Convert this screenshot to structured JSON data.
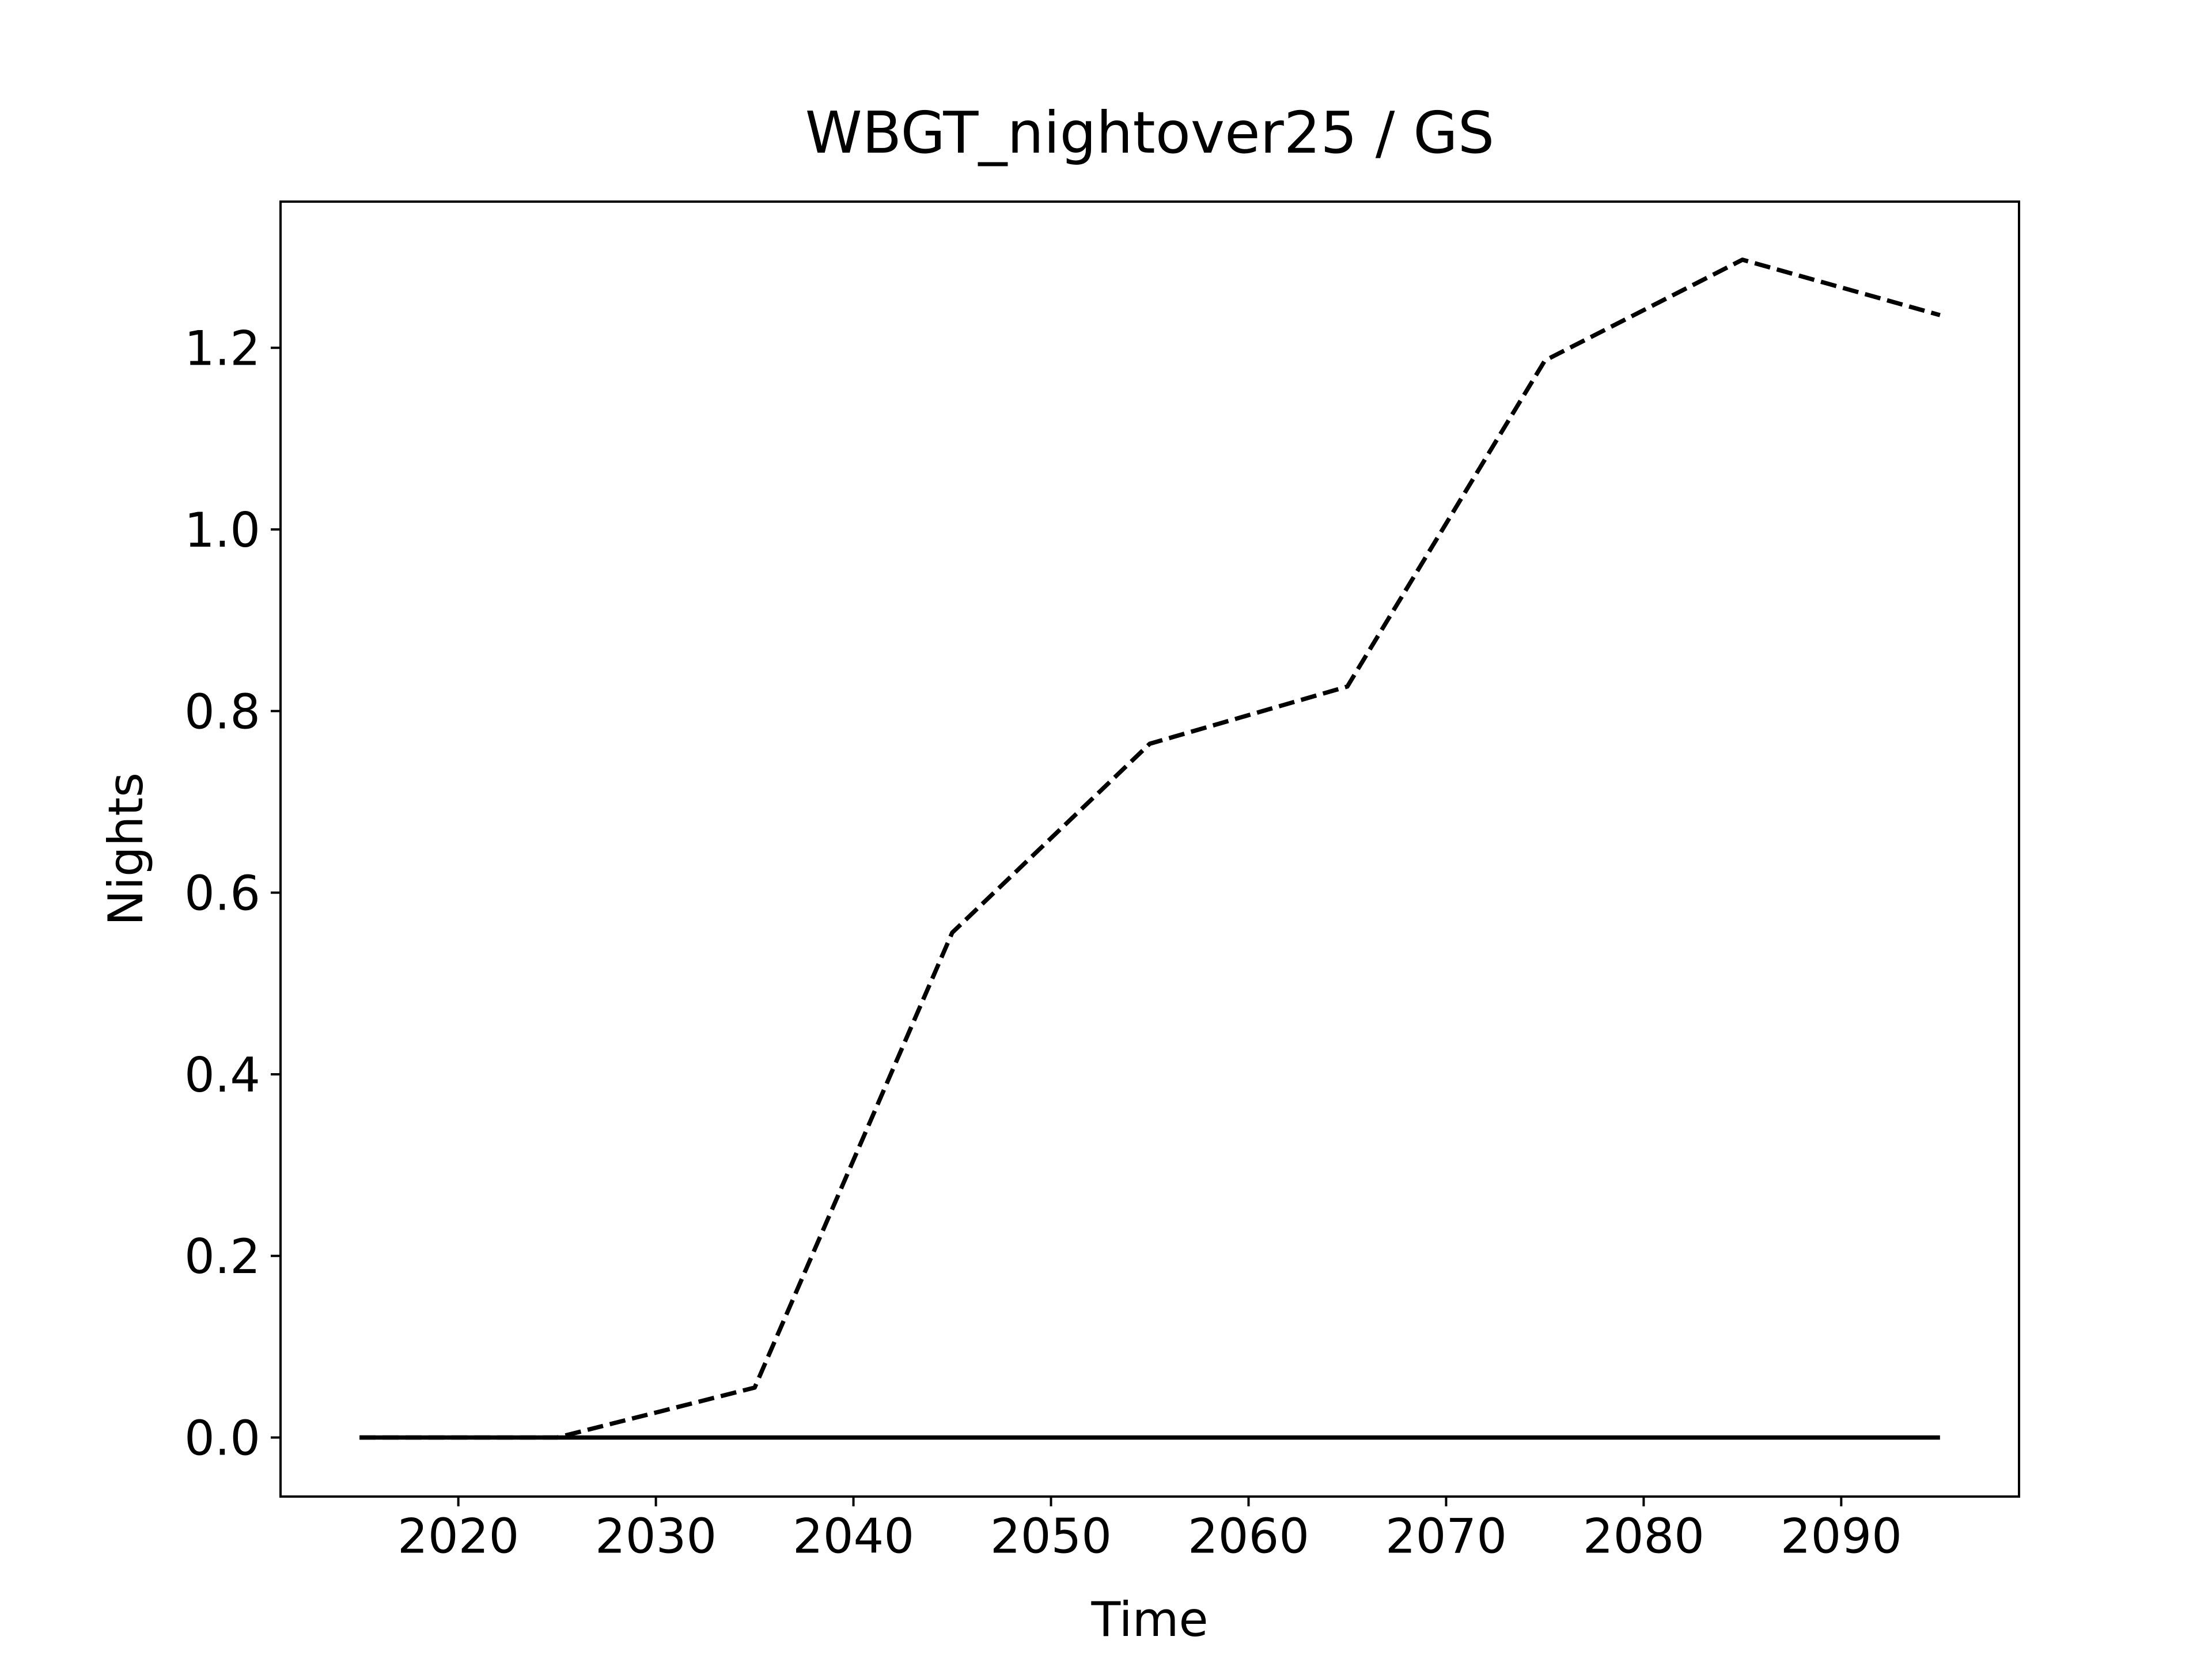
{
  "chart_data": {
    "type": "line",
    "title": "WBGT_nightover25 / GS",
    "x_label": "Time",
    "y_label": "Nights",
    "x": [
      2015,
      2025,
      2035,
      2045,
      2055,
      2065,
      2075,
      2085,
      2095
    ],
    "series": [
      {
        "color": "#000000",
        "style": "dashed",
        "values": [
          0,
          0,
          0.055,
          0.556,
          0.764,
          0.827,
          1.186,
          1.297,
          1.236
        ]
      },
      {
        "color": "#000000",
        "style": "solid",
        "values": [
          0,
          0,
          0,
          0,
          0,
          0,
          0,
          0,
          0
        ]
      }
    ],
    "xlim": [
      2011,
      2099
    ],
    "ylim": [
      -0.065,
      1.361
    ],
    "xticks": [
      2020,
      2030,
      2040,
      2050,
      2060,
      2070,
      2080,
      2090
    ],
    "yticks": [
      {
        "value": 0,
        "label": "0.0"
      },
      {
        "value": 0.2,
        "label": "0.2"
      },
      {
        "value": 0.4,
        "label": "0.4"
      },
      {
        "value": 0.6,
        "label": "0.6"
      },
      {
        "value": 0.8,
        "label": "0.8"
      },
      {
        "value": 1.0,
        "label": "1.0"
      },
      {
        "value": 1.2,
        "label": "1.2"
      }
    ],
    "grid": false
  }
}
